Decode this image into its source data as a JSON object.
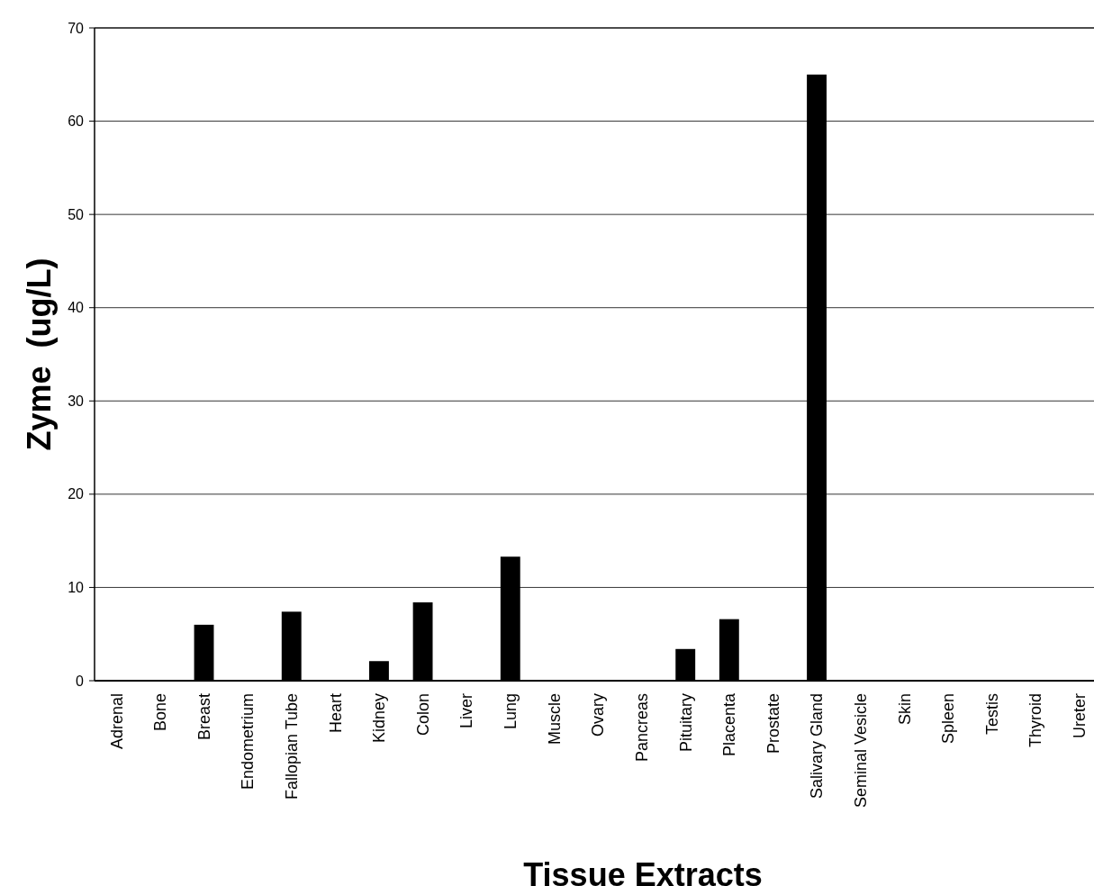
{
  "chart_data": {
    "type": "bar",
    "xlabel": "Tissue Extracts",
    "ylabel": "Zyme  (ug/L)",
    "categories": [
      "Adrenal",
      "Bone",
      "Breast",
      "Endometrium",
      "Fallopian Tube",
      "Heart",
      "Kidney",
      "Colon",
      "Liver",
      "Lung",
      "Muscle",
      "Ovary",
      "Pancreas",
      "Pituitary",
      "Placenta",
      "Prostate",
      "Salivary Gland",
      "Seminal Vesicle",
      "Skin",
      "Spleen",
      "Testis",
      "Thyroid",
      "Ureter"
    ],
    "values": [
      0,
      0,
      6.0,
      0,
      7.4,
      0,
      2.1,
      8.4,
      0,
      13.3,
      0,
      0,
      0,
      3.4,
      6.6,
      0,
      65.0,
      0,
      0,
      0,
      0,
      0,
      0
    ],
    "color": "#000000",
    "ylim": [
      0,
      70
    ],
    "yticks": [
      0,
      10,
      20,
      30,
      40,
      50,
      60,
      70
    ],
    "grid": "y"
  }
}
